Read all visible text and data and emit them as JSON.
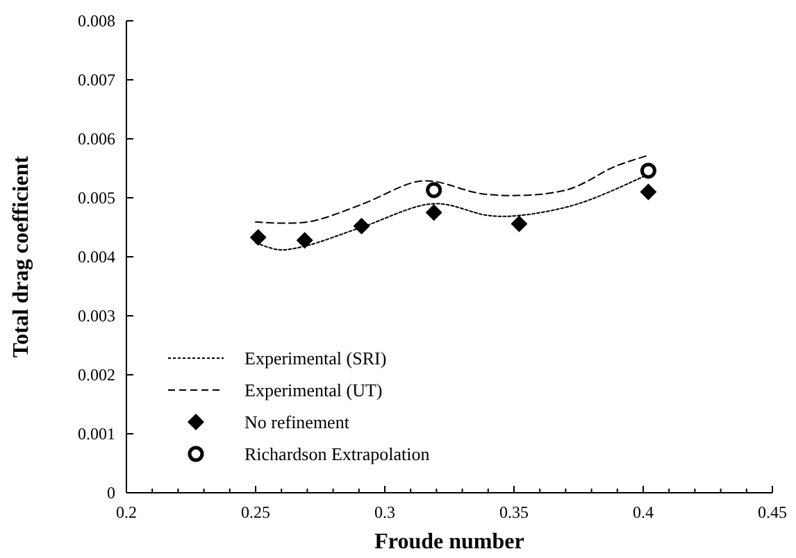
{
  "chart_data": {
    "type": "line",
    "xlabel": "Froude number",
    "ylabel": "Total drag coefficient",
    "xlim": [
      0.2,
      0.45
    ],
    "ylim": [
      0,
      0.008
    ],
    "xticks": [
      0.2,
      {
        "value": 0.21,
        "label": null
      },
      {
        "value": 0.22,
        "label": null
      },
      {
        "value": 0.23,
        "label": null
      },
      {
        "value": 0.24,
        "label": null
      },
      0.25,
      {
        "value": 0.26,
        "label": null
      },
      {
        "value": 0.27,
        "label": null
      },
      {
        "value": 0.28,
        "label": null
      },
      {
        "value": 0.29,
        "label": null
      },
      0.3,
      {
        "value": 0.31,
        "label": null
      },
      {
        "value": 0.32,
        "label": null
      },
      {
        "value": 0.33,
        "label": null
      },
      {
        "value": 0.34,
        "label": null
      },
      0.35,
      {
        "value": 0.36,
        "label": null
      },
      {
        "value": 0.37,
        "label": null
      },
      {
        "value": 0.38,
        "label": null
      },
      {
        "value": 0.39,
        "label": null
      },
      0.4,
      {
        "value": 0.41,
        "label": null
      },
      {
        "value": 0.42,
        "label": null
      },
      {
        "value": 0.43,
        "label": null
      },
      {
        "value": 0.44,
        "label": null
      },
      0.45
    ],
    "yticks": [
      0,
      0.001,
      0.002,
      0.003,
      0.004,
      0.005,
      0.006,
      0.007,
      0.008
    ],
    "grid": false,
    "legend": "bottom left",
    "series": [
      {
        "name": "Experimental (SRI)",
        "color": "#000000",
        "line_style": "dotted",
        "marker": "none",
        "x": [
          0.25,
          0.259,
          0.269,
          0.291,
          0.319,
          0.34,
          0.352,
          0.375,
          0.402
        ],
        "values": [
          0.00424,
          0.00412,
          0.00418,
          0.0045,
          0.0049,
          0.0047,
          0.0047,
          0.0049,
          0.0054
        ]
      },
      {
        "name": "Experimental (UT)",
        "color": "#000000",
        "line_style": "dashed",
        "marker": "none",
        "x": [
          0.25,
          0.27,
          0.29,
          0.312,
          0.32,
          0.339,
          0.37,
          0.389,
          0.402
        ],
        "values": [
          0.00459,
          0.00459,
          0.00487,
          0.00527,
          0.00527,
          0.00506,
          0.00513,
          0.00553,
          0.00572
        ]
      },
      {
        "name": "No refinement",
        "type": "scatter",
        "color": "#000000",
        "marker": "diamond",
        "x": [
          0.251,
          0.269,
          0.291,
          0.319,
          0.352,
          0.402
        ],
        "values": [
          0.00433,
          0.00428,
          0.00452,
          0.00475,
          0.00456,
          0.0051
        ]
      },
      {
        "name": "Richardson Extrapolation",
        "type": "scatter",
        "color": "#000000",
        "marker": "circle",
        "x": [
          0.319,
          0.402
        ],
        "values": [
          0.00513,
          0.00546
        ]
      }
    ]
  }
}
